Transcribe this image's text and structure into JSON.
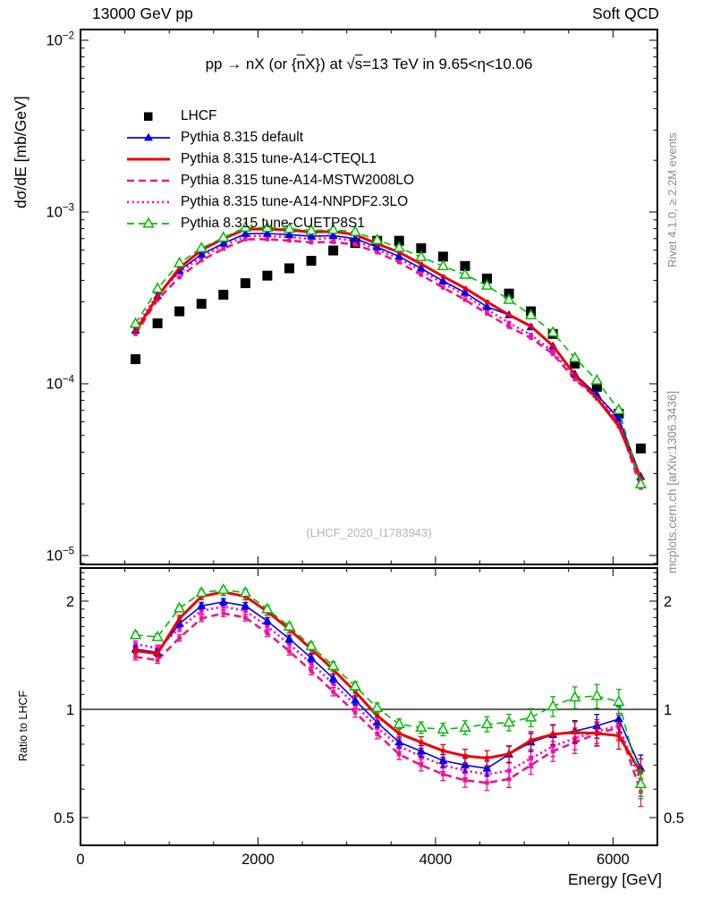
{
  "header": {
    "left": "13000 GeV pp",
    "right": "Soft QCD"
  },
  "title_fragments": {
    "t1": "pp ",
    "arrow": "→",
    "t2": " nX (or {",
    "nbar": "n",
    "t3": "X}) at ",
    "rad": "√",
    "s": "s",
    "t4": "=13 TeV in 9.65<η<10.06"
  },
  "side_notes": {
    "top": "Rivet 4.1.0, ≥ 2.2M events",
    "bottom": "mcplots.cern.ch [arXiv:1306.3436]"
  },
  "watermark": "(LHCF_2020_I1783943)",
  "axes": {
    "y_label": "dσ/dE [mb/GeV]",
    "ratio_label": "Ratio to LHCF",
    "x_label": "Energy [GeV]",
    "x_range": [
      0,
      6500
    ],
    "x_minor_step": 500,
    "x_ticks": [
      {
        "value": 0,
        "label": "0"
      },
      {
        "value": 2000,
        "label": "2000"
      },
      {
        "value": 4000,
        "label": "4000"
      },
      {
        "value": 6000,
        "label": "6000"
      }
    ],
    "y_range": [
      8.9e-06,
      0.0115
    ],
    "y_ticks": [
      {
        "value": 0.01,
        "base": "10",
        "exp": "−2"
      },
      {
        "value": 0.001,
        "base": "10",
        "exp": "−3"
      },
      {
        "value": 0.0001,
        "base": "10",
        "exp": "−4"
      },
      {
        "value": 1e-05,
        "base": "10",
        "exp": "−5"
      }
    ],
    "ratio_range": [
      0.42,
      2.47
    ],
    "ratio_ticks": [
      {
        "value": 2,
        "label": "2"
      },
      {
        "value": 1,
        "label": "1"
      },
      {
        "value": 0.5,
        "label": "0.5"
      }
    ],
    "grid": false
  },
  "chart_data": {
    "type": "line",
    "xlabel": "Energy [GeV]",
    "ylabel": "dσ/dE [mb/GeV]",
    "ratio_ylabel": "Ratio to LHCF",
    "legend_position": "top-left-inside",
    "x": [
      620,
      868,
      1115,
      1363,
      1610,
      1858,
      2105,
      2353,
      2600,
      2848,
      3095,
      3343,
      3590,
      3838,
      4085,
      4333,
      4580,
      4828,
      5075,
      5323,
      5570,
      5818,
      6065,
      6313
    ],
    "reference": {
      "name": "LHCF",
      "color": "#000000",
      "marker": "filled-square",
      "dsde": [
        0.000139,
        0.000225,
        0.000264,
        0.000292,
        0.00033,
        0.000385,
        0.000426,
        0.00047,
        0.00052,
        0.000597,
        0.00066,
        0.00068,
        0.00068,
        0.000615,
        0.00055,
        0.000485,
        0.00041,
        0.000335,
        0.000264,
        0.000195,
        0.000131,
        9.6e-05,
        6.7e-05,
        4.2e-05
      ]
    },
    "series": [
      {
        "name": "Pythia 8.315 default",
        "color": "#0000ee",
        "line": "solid",
        "width": 1.6,
        "marker": "triangle-filled",
        "ratio": [
          1.47,
          1.44,
          1.73,
          1.94,
          1.99,
          1.94,
          1.76,
          1.57,
          1.39,
          1.22,
          1.06,
          0.92,
          0.81,
          0.765,
          0.72,
          0.7,
          0.685,
          0.75,
          0.81,
          0.85,
          0.87,
          0.9,
          0.94,
          0.685
        ]
      },
      {
        "name": "Pythia 8.315 tune-A14-CTEQL1",
        "color": "#ee0000",
        "line": "solid",
        "width": 3,
        "marker": "square-small",
        "ratio": [
          1.455,
          1.43,
          1.79,
          2.06,
          2.12,
          2.06,
          1.87,
          1.67,
          1.47,
          1.29,
          1.12,
          0.96,
          0.857,
          0.81,
          0.767,
          0.742,
          0.732,
          0.752,
          0.82,
          0.853,
          0.863,
          0.857,
          0.845,
          0.668
        ]
      },
      {
        "name": "Pythia 8.315 tune-A14-MSTW2008LO",
        "color": "#ee1687",
        "line": "dashed",
        "width": 2.6,
        "marker": "square-small",
        "ratio": [
          1.4,
          1.37,
          1.58,
          1.79,
          1.85,
          1.8,
          1.63,
          1.45,
          1.28,
          1.12,
          0.98,
          0.855,
          0.75,
          0.7,
          0.66,
          0.635,
          0.625,
          0.64,
          0.7,
          0.765,
          0.81,
          0.855,
          0.89,
          0.59
        ]
      },
      {
        "name": "Pythia 8.315 tune-A14-NNPDF2.3LO",
        "color": "#ff00cc",
        "line": "dotted",
        "width": 2.6,
        "marker": "square-small",
        "ratio": [
          1.52,
          1.48,
          1.68,
          1.88,
          1.93,
          1.88,
          1.7,
          1.52,
          1.34,
          1.18,
          1.03,
          0.89,
          0.79,
          0.74,
          0.7,
          0.675,
          0.66,
          0.675,
          0.73,
          0.79,
          0.83,
          0.87,
          0.9,
          0.63
        ]
      },
      {
        "name": "Pythia 8.315 tune-CUETP8S1",
        "color": "#00bb00",
        "line": "dashed",
        "width": 1.6,
        "marker": "triangle-open",
        "ratio": [
          1.61,
          1.59,
          1.91,
          2.11,
          2.15,
          2.11,
          1.9,
          1.7,
          1.5,
          1.32,
          1.16,
          1.01,
          0.91,
          0.89,
          0.88,
          0.89,
          0.91,
          0.92,
          0.95,
          1.02,
          1.08,
          1.09,
          1.05,
          0.62
        ]
      }
    ],
    "ratio_err_rel": {
      "min": 0.02,
      "max": 0.09
    },
    "note": "model main-panel values = ratio × LHCF dsde; unity line drawn in ratio panel"
  }
}
